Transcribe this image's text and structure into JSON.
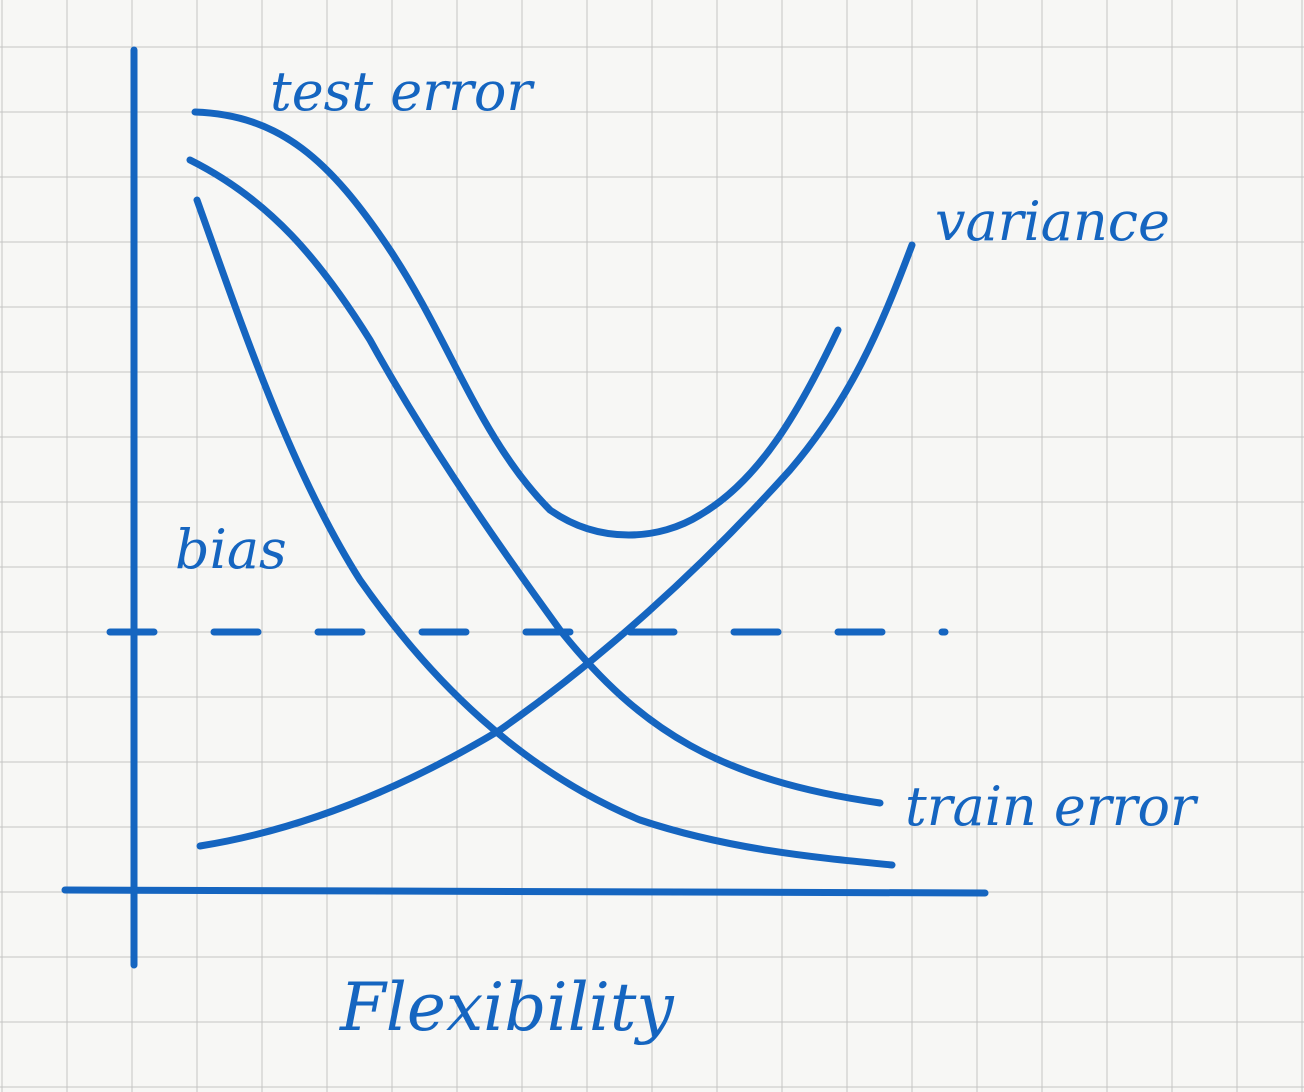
{
  "labels": {
    "test_error": "test error",
    "variance": "variance",
    "bias": "bias",
    "train_error": "train error",
    "x_axis": "Flexibility"
  },
  "colors": {
    "ink": "#1565c0",
    "paper": "#f7f7f5",
    "grid": "#c4c4c4"
  }
}
